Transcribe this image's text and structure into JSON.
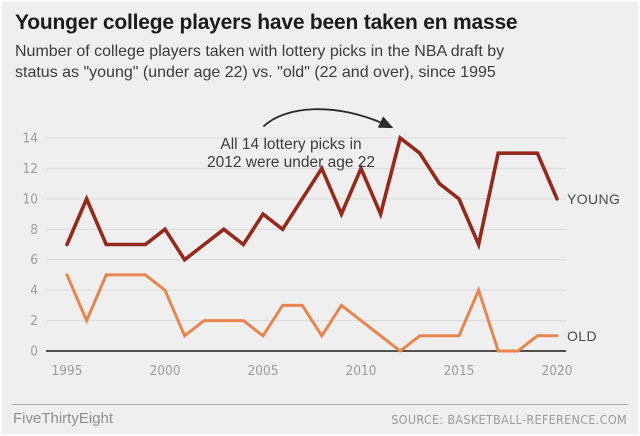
{
  "header": {
    "title": "Younger college players have been taken en masse",
    "subtitle_line1": "Number of college players taken with lottery picks in the NBA draft by",
    "subtitle_line2": "status as \"young\" (under age 22) vs. \"old\" (22 and over), since 1995"
  },
  "annotation": {
    "line1": "All 14 lottery picks in",
    "line2": "2012 were under age 22"
  },
  "footer": {
    "brand": "FiveThirtyEight",
    "source": "SOURCE: BASKETBALL-REFERENCE.COM"
  },
  "colors": {
    "background": "#efefef",
    "young_line": "#96291b",
    "old_line": "#e8854f",
    "gridline": "#d9d9d9",
    "axis": "#1c1c1c",
    "tick_label": "#9c9c9c"
  },
  "chart_data": {
    "type": "line",
    "x": [
      1995,
      1996,
      1997,
      1998,
      1999,
      2000,
      2001,
      2002,
      2003,
      2004,
      2005,
      2006,
      2007,
      2008,
      2009,
      2010,
      2011,
      2012,
      2013,
      2014,
      2015,
      2016,
      2017,
      2018,
      2019,
      2020
    ],
    "series": [
      {
        "name": "YOUNG",
        "color": "#96291b",
        "values": [
          7,
          10,
          7,
          7,
          7,
          8,
          6,
          7,
          8,
          7,
          9,
          8,
          10,
          12,
          9,
          12,
          9,
          14,
          13,
          11,
          10,
          7,
          13,
          13,
          13,
          10
        ]
      },
      {
        "name": "OLD",
        "color": "#e8854f",
        "values": [
          5,
          2,
          5,
          5,
          5,
          4,
          1,
          2,
          2,
          2,
          1,
          3,
          3,
          1,
          3,
          2,
          1,
          0,
          1,
          1,
          1,
          4,
          0,
          0,
          1,
          1
        ]
      }
    ],
    "xticks": [
      1995,
      2000,
      2005,
      2010,
      2015,
      2020
    ],
    "yticks": [
      0,
      2,
      4,
      6,
      8,
      10,
      12,
      14
    ],
    "xlim": [
      1995,
      2020
    ],
    "ylim": [
      0,
      14
    ],
    "grid": true,
    "legend": "end-of-line labels",
    "annotation_text": "All 14 lottery picks in 2012 were under age 22",
    "title": "Younger college players have been taken en masse"
  }
}
